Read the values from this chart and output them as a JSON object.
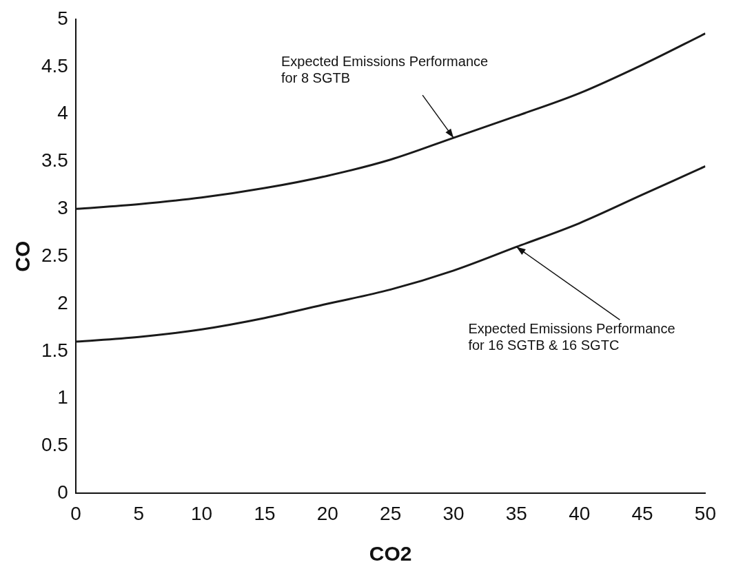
{
  "chart_data": {
    "type": "line",
    "xlabel": "CO2",
    "ylabel": "CO",
    "x": [
      0,
      5,
      10,
      15,
      20,
      25,
      30,
      35,
      40,
      45,
      50
    ],
    "series": [
      {
        "color": "#1a1a1a",
        "values": [
          3.0,
          3.05,
          3.12,
          3.22,
          3.35,
          3.52,
          3.75,
          3.98,
          4.22,
          4.52,
          4.85
        ]
      },
      {
        "color": "#1a1a1a",
        "values": [
          1.6,
          1.65,
          1.73,
          1.85,
          2.0,
          2.15,
          2.35,
          2.6,
          2.85,
          3.15,
          3.45
        ]
      }
    ],
    "xlim": [
      0,
      50
    ],
    "xticks": [
      0,
      5,
      10,
      15,
      20,
      25,
      30,
      35,
      40,
      45,
      50
    ],
    "ylim": [
      0,
      5
    ],
    "yticks": [
      0,
      0.5,
      1,
      1.5,
      2,
      2.5,
      3,
      3.5,
      4,
      4.5,
      5
    ],
    "grid": false,
    "marker": "none",
    "line_style": "solid",
    "annotations": [
      {
        "text": "Expected Emissions Performance\nfor 8 SGTB",
        "x": 30,
        "y": 3.75
      },
      {
        "text": "Expected Emissions Performance\nfor 16 SGTB & 16 SGTC",
        "x": 35,
        "y": 2.6
      }
    ]
  }
}
